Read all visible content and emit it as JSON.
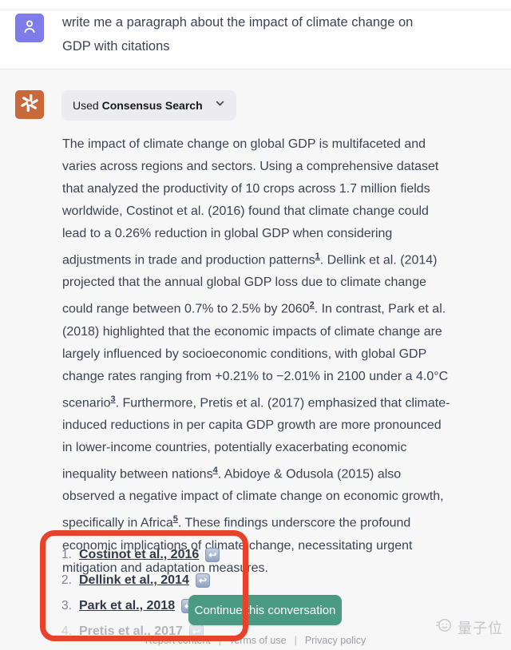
{
  "user": {
    "message": "write me a paragraph about the impact of climate change on GDP with citations"
  },
  "assistant": {
    "plugin_pill": {
      "prefix": "Used ",
      "name": "Consensus Search"
    },
    "paragraph_segments": [
      {
        "t": "The impact of climate change on global GDP is multifaceted and varies across regions and sectors. Using a comprehensive dataset that analyzed the productivity of 10 crops across 1.7 million fields worldwide, Costinot et al. (2016) found that climate change could lead to a 0.26% reduction in global GDP when considering adjustments in trade and production patterns"
      },
      {
        "sup": "1"
      },
      {
        "t": ". Dellink et al. (2014) projected that the annual global GDP loss due to climate change could range between 0.7% to 2.5% by 2060"
      },
      {
        "sup": "2"
      },
      {
        "t": ". In contrast, Park et al. (2018) highlighted that the economic impacts of climate change are largely influenced by socioeconomic conditions, with global GDP change rates ranging from +0.21% to −2.01% in 2100 under a 4.0°C scenario"
      },
      {
        "sup": "3"
      },
      {
        "t": ". Furthermore, Pretis et al. (2017) emphasized that climate-induced reductions in per capita GDP growth are more pronounced in lower-income countries, potentially exacerbating economic inequality between nations"
      },
      {
        "sup": "4"
      },
      {
        "t": ". Abidoye & Odusola (2015) also observed a negative impact of climate change on economic growth, specifically in Africa"
      },
      {
        "sup": "5"
      },
      {
        "t": ". These findings underscore the profound economic implications of climate change, necessitating urgent mitigation and adaptation measures."
      }
    ],
    "citations": [
      {
        "num": "1.",
        "label": "Costinot et al., 2016",
        "faded": false
      },
      {
        "num": "2.",
        "label": "Dellink et al., 2014",
        "faded": false
      },
      {
        "num": "3.",
        "label": "Park et al., 2018",
        "faded": false
      },
      {
        "num": "4.",
        "label": "Pretis et al., 2017",
        "faded": true
      }
    ],
    "citation_icon_glyph": "↩"
  },
  "continue_button": {
    "label": "Continue this conversation"
  },
  "footer": {
    "links": [
      "Report content",
      "Terms of use",
      "Privacy policy"
    ],
    "separator": "|"
  },
  "watermark": {
    "text": "量子位"
  },
  "colors": {
    "user_avatar": "#7d7ce9",
    "assistant_avatar": "#c8693c",
    "continue_button": "#4a9b82",
    "annotation_red": "#e8432a",
    "section_background": "#f7f7f8",
    "pill_background": "#ececf0",
    "citation_icon": "#8fa3c1"
  }
}
